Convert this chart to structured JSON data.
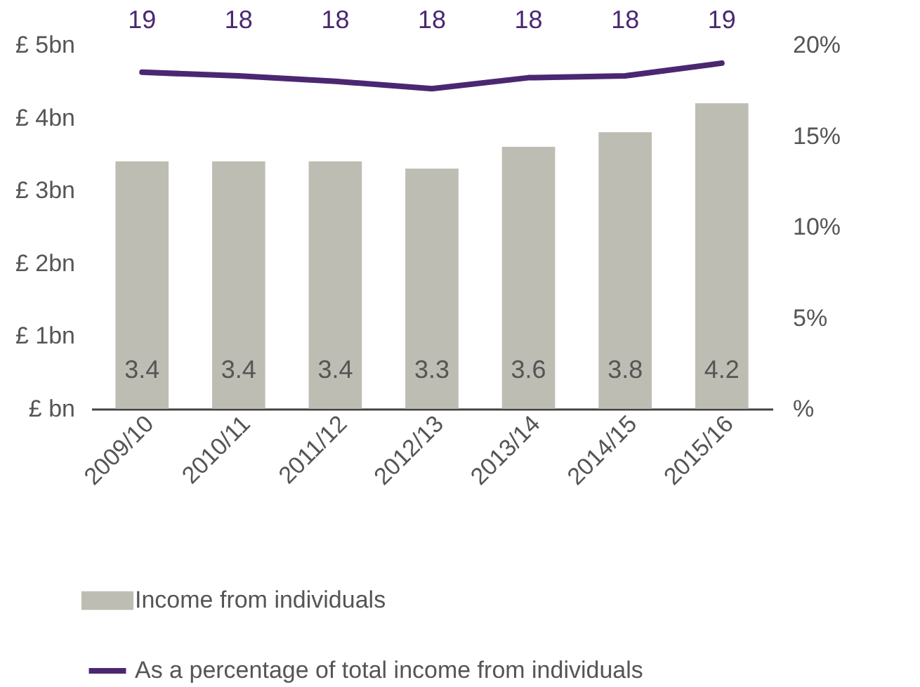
{
  "chart_data": {
    "type": "bar",
    "categories": [
      "2009/10",
      "2010/11",
      "2011/12",
      "2012/13",
      "2013/14",
      "2014/15",
      "2015/16"
    ],
    "series": [
      {
        "name": "Income from individuals",
        "color": "#bdbdb3",
        "values": [
          3.4,
          3.4,
          3.4,
          3.3,
          3.6,
          3.8,
          4.2
        ]
      },
      {
        "name": "As a percentage of total income from individuals",
        "type": "line",
        "axis": "y2",
        "color": "#4b2772",
        "values": [
          18.5,
          18.3,
          18.0,
          17.6,
          18.2,
          18.3,
          19.0
        ],
        "value_labels": [
          "19",
          "18",
          "18",
          "18",
          "18",
          "18",
          "19"
        ]
      }
    ],
    "data_labels": true,
    "ylim": [
      0,
      5
    ],
    "yticks": [
      {
        "value": 0,
        "label": "£ bn"
      },
      {
        "value": 1,
        "label": "£ 1bn"
      },
      {
        "value": 2,
        "label": "£ 2bn"
      },
      {
        "value": 3,
        "label": "£ 3bn"
      },
      {
        "value": 4,
        "label": "£ 4bn"
      },
      {
        "value": 5,
        "label": "£ 5bn"
      }
    ],
    "y2lim": [
      0,
      20
    ],
    "y2ticks": [
      {
        "value": 0,
        "label": "%"
      },
      {
        "value": 5,
        "label": "5%"
      },
      {
        "value": 10,
        "label": "10%"
      },
      {
        "value": 15,
        "label": "15%"
      },
      {
        "value": 20,
        "label": "20%"
      }
    ],
    "grid": false,
    "legend": "bottom",
    "marker": "none",
    "line_style": "solid"
  }
}
